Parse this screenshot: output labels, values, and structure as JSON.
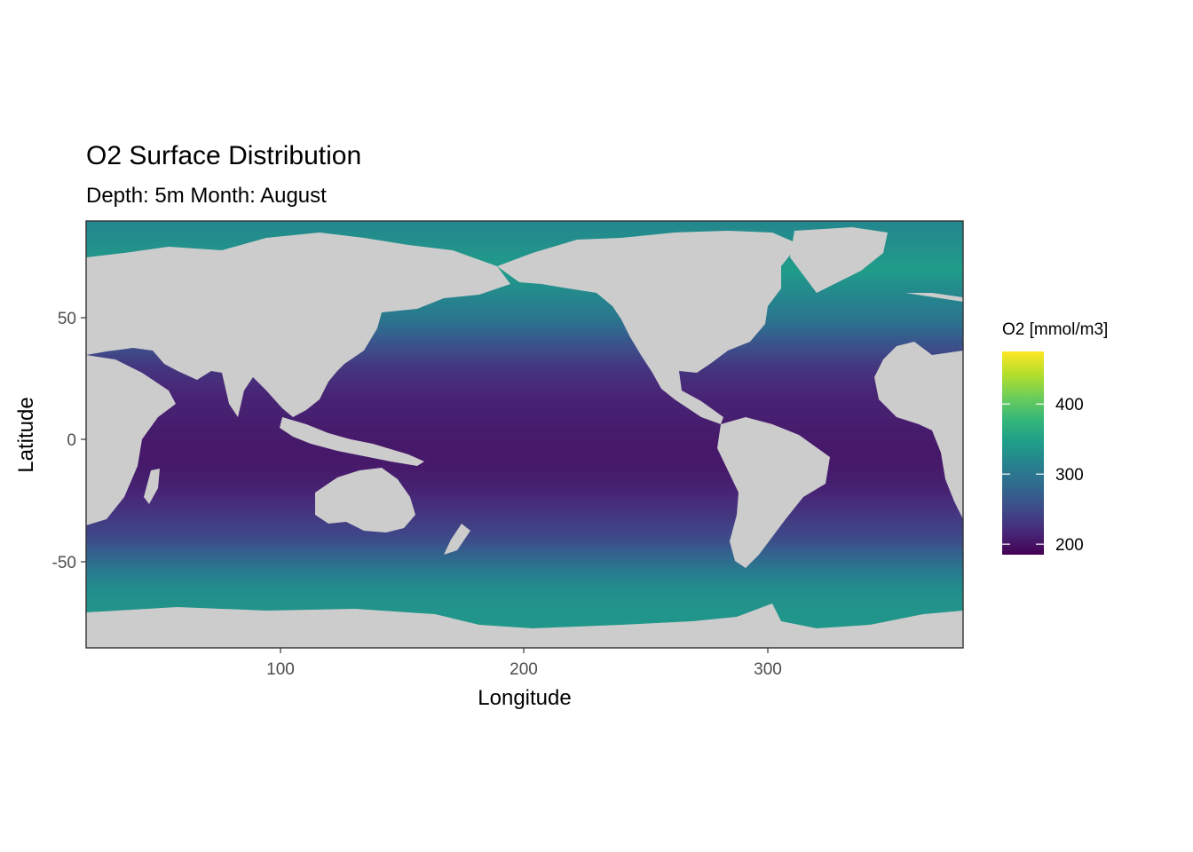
{
  "chart_data": {
    "type": "heatmap",
    "title": "O2 Surface Distribution",
    "subtitle": "Depth: 5m  Month: August",
    "xlabel": "Longitude",
    "ylabel": "Latitude",
    "xlim": [
      20,
      380
    ],
    "ylim": [
      -85,
      90
    ],
    "x_ticks": [
      100,
      200,
      300
    ],
    "x_tick_labels": [
      "100",
      "200",
      "300"
    ],
    "y_ticks": [
      50,
      0,
      -50
    ],
    "y_tick_labels": [
      "50",
      "0",
      "-50"
    ],
    "grid": false,
    "land_color": "#cccccc",
    "legend": {
      "title": "O2 [mmol/m3]",
      "position": "right",
      "range": [
        185,
        475
      ],
      "ticks": [
        400,
        300,
        200
      ],
      "tick_labels": [
        "400",
        "300",
        "200"
      ],
      "colormap": "viridis",
      "colors": [
        "#440154",
        "#482878",
        "#3e4a89",
        "#31688e",
        "#26828e",
        "#1f9e89",
        "#35b779",
        "#6ece58",
        "#b5de2b",
        "#fde725"
      ]
    },
    "zonal_profile": {
      "latitude": [
        90,
        80,
        70,
        60,
        50,
        40,
        30,
        20,
        10,
        0,
        -10,
        -20,
        -30,
        -40,
        -45,
        -50,
        -55,
        -60,
        -70,
        -85
      ],
      "o2": [
        320,
        330,
        345,
        320,
        300,
        260,
        230,
        215,
        210,
        205,
        205,
        212,
        230,
        250,
        270,
        290,
        310,
        325,
        335,
        340
      ]
    }
  }
}
